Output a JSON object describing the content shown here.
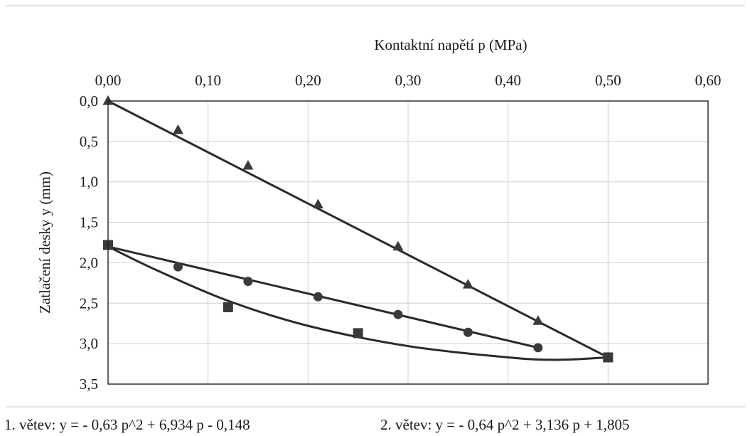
{
  "chart_data": {
    "type": "scatter",
    "xlabel": "Kontaktní napětí p  (MPa)",
    "ylabel": "Zatlačení desky y  (mm)",
    "xlim": [
      0,
      0.6
    ],
    "ylim": [
      0,
      3.5
    ],
    "x_axis_position": "top",
    "y_axis_inverted": true,
    "grid": true,
    "x_ticks": [
      "0,00",
      "0,10",
      "0,20",
      "0,30",
      "0,40",
      "0,50",
      "0,60"
    ],
    "y_ticks": [
      "0,0",
      "0,5",
      "1,0",
      "1,5",
      "2,0",
      "2,5",
      "3,0",
      "3,5"
    ],
    "series": [
      {
        "marker": "triangle",
        "points": [
          [
            0.0,
            0.0
          ],
          [
            0.07,
            0.36
          ],
          [
            0.14,
            0.8
          ],
          [
            0.21,
            1.28
          ],
          [
            0.29,
            1.8
          ],
          [
            0.36,
            2.27
          ],
          [
            0.43,
            2.72
          ],
          [
            0.5,
            3.17
          ]
        ],
        "trend": [
          [
            0.0,
            0.0
          ],
          [
            0.5,
            3.17
          ]
        ]
      },
      {
        "marker": "circle",
        "points": [
          [
            0.0,
            1.78
          ],
          [
            0.07,
            2.05
          ],
          [
            0.14,
            2.23
          ],
          [
            0.21,
            2.42
          ],
          [
            0.29,
            2.64
          ],
          [
            0.36,
            2.86
          ],
          [
            0.43,
            3.05
          ]
        ],
        "trend": [
          [
            0.0,
            1.8
          ],
          [
            0.43,
            3.05
          ]
        ]
      },
      {
        "marker": "square",
        "points": [
          [
            0.0,
            1.78
          ],
          [
            0.12,
            2.55
          ],
          [
            0.25,
            2.87
          ],
          [
            0.5,
            3.17
          ]
        ],
        "trend": [
          [
            0.0,
            1.8
          ],
          [
            0.05,
            2.1
          ],
          [
            0.12,
            2.47
          ],
          [
            0.2,
            2.78
          ],
          [
            0.3,
            3.03
          ],
          [
            0.4,
            3.17
          ],
          [
            0.45,
            3.2
          ],
          [
            0.5,
            3.17
          ]
        ]
      }
    ]
  },
  "equations": {
    "branch1": "1. větev: y = - 0,63 p^2 + 6,934 p - 0,148",
    "branch2": "2. větev: y = - 0,64 p^2 + 3,136 p + 1,805"
  }
}
